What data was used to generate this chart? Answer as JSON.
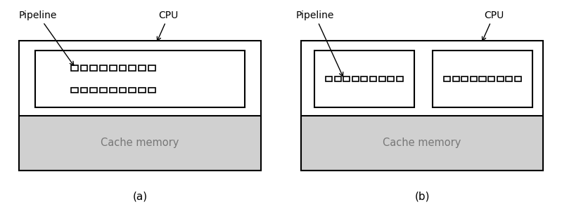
{
  "fig_width": 7.99,
  "fig_height": 2.95,
  "dpi": 100,
  "bg_color": "#ffffff",
  "box_edge_color": "#000000",
  "cache_fill_color": "#d0d0d0",
  "label_a": "(a)",
  "label_b": "(b)",
  "pipeline_label": "Pipeline",
  "cpu_label": "CPU",
  "cache_label": "Cache memory",
  "small_box_color": "#ffffff",
  "pipeline_symbol_color": "#000000",
  "cache_text_color": "#777777"
}
